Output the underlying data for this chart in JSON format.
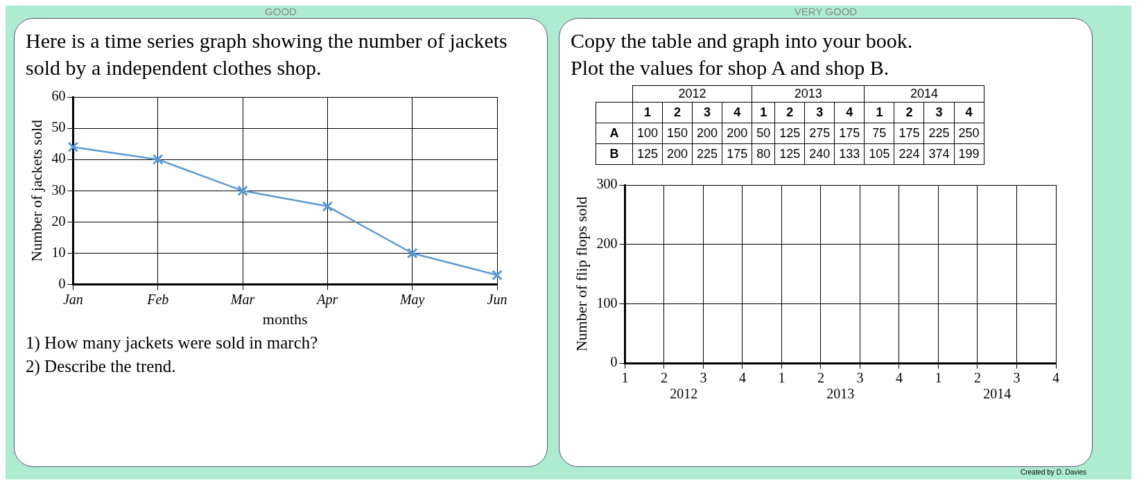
{
  "chart_data": [
    {
      "type": "line",
      "subtitle": "GOOD",
      "title": "Here is a time series graph showing the number of jackets sold by a independent clothes shop.",
      "categories": [
        "Jan",
        "Feb",
        "Mar",
        "Apr",
        "May",
        "Jun"
      ],
      "values": [
        44,
        40,
        30,
        25,
        10,
        3
      ],
      "color": "#5b9bd5",
      "ylim": [
        0,
        60
      ],
      "yticks": [
        0,
        10,
        20,
        30,
        40,
        50,
        60
      ],
      "grid": true,
      "marker": "cross",
      "xlabel": "months",
      "ylabel": "Number of jackets sold",
      "annotations": [
        "1)  How many jackets were sold in march?",
        "2)  Describe the trend."
      ]
    },
    {
      "type": "heatmap",
      "subtitle": "VERY GOOD",
      "title": "Copy the table and graph into your book.\nPlot the values for shop A and shop B.",
      "categories": [
        "1",
        "2",
        "3",
        "4",
        "1",
        "2",
        "3",
        "4",
        "1",
        "2",
        "3",
        "4"
      ],
      "y_categories": [
        "A",
        "B"
      ],
      "cells": [
        [
          100,
          150,
          200,
          200,
          50,
          125,
          275,
          175,
          75,
          175,
          225,
          250
        ],
        [
          125,
          200,
          225,
          175,
          80,
          125,
          240,
          133,
          105,
          224,
          374,
          199
        ]
      ],
      "data_labels": true,
      "annotations": [
        "2012",
        "2013",
        "2014"
      ]
    },
    {
      "type": "line",
      "categories": [
        "1",
        "2",
        "3",
        "4",
        "1",
        "2",
        "3",
        "4",
        "1",
        "2",
        "3",
        "4"
      ],
      "ylim": [
        0,
        300
      ],
      "yticks": [
        0,
        100,
        200,
        300
      ],
      "grid": true,
      "ylabel": "Number of flip flops sold",
      "annotations": [
        "2012",
        "2013",
        "2014",
        "Created by D. Davies"
      ]
    }
  ]
}
